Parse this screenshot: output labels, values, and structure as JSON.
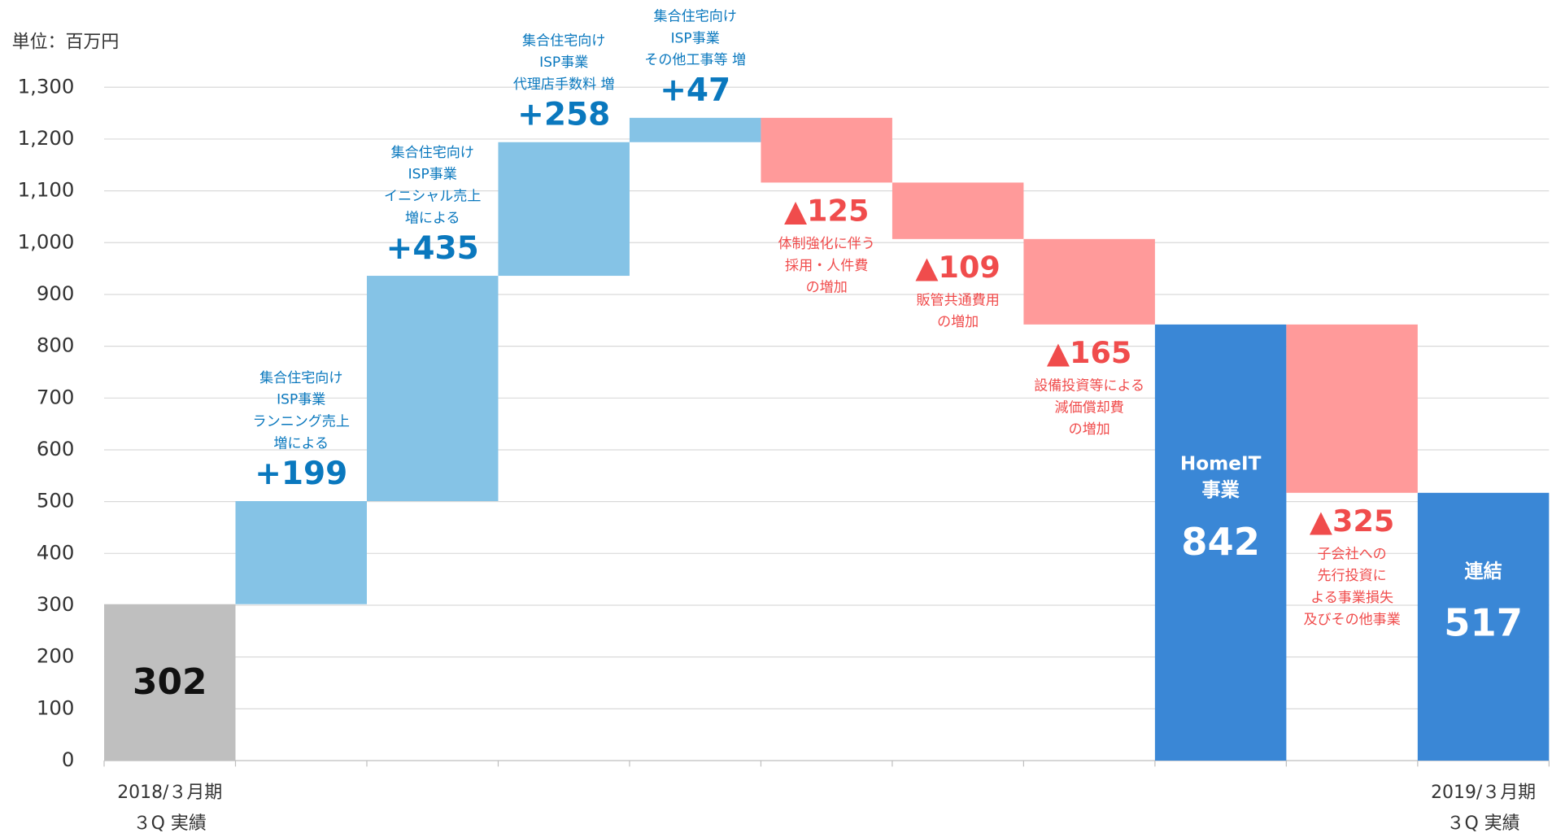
{
  "chart_data": {
    "type": "waterfall",
    "unit_label": "単位：百万円",
    "categories": [
      [
        "2018/３月期",
        "３Q 実績"
      ],
      null,
      null,
      null,
      null,
      null,
      null,
      null,
      null,
      null,
      [
        "2019/３月期",
        "３Q 実績"
      ]
    ],
    "measures": [
      "absolute",
      "relative",
      "relative",
      "relative",
      "relative",
      "relative",
      "relative",
      "relative",
      "total",
      "relative",
      "total"
    ],
    "values": [
      302,
      199,
      435,
      258,
      47,
      -125,
      -109,
      -165,
      842,
      -325,
      517
    ],
    "value_labels": [
      "302",
      "+199",
      "+435",
      "+258",
      "+47",
      "▲125",
      "▲109",
      "▲165",
      "842",
      "▲325",
      "517"
    ],
    "notes": [
      null,
      [
        "集合住宅向け",
        "ISP事業",
        "ランニング売上",
        "増による"
      ],
      [
        "集合住宅向け",
        "ISP事業",
        "イニシャル売上",
        "増による"
      ],
      [
        "集合住宅向け",
        "ISP事業",
        "代理店手数料 増"
      ],
      [
        "集合住宅向け",
        "ISP事業",
        "その他工事等 増"
      ],
      [
        "体制強化に伴う",
        "採用・人件費",
        "の増加"
      ],
      [
        "販管共通費用",
        "の増加"
      ],
      [
        "設備投資等による",
        "減価償却費",
        "の増加"
      ],
      null,
      [
        "子会社への",
        "先行投資に",
        "よる事業損失",
        "及びその他事業"
      ],
      null
    ],
    "bar_labels": [
      null,
      null,
      null,
      null,
      null,
      null,
      null,
      null,
      [
        "HomeIT",
        "事業"
      ],
      null,
      [
        "連結"
      ]
    ],
    "colors": {
      "absolute": "#bfbfbf",
      "increase": "#85c3e6",
      "decrease": "#ff9a9a",
      "total": "#3a87d6"
    },
    "label_colors": {
      "increase": "#0a78be",
      "decrease": "#f04c4c"
    },
    "ylim": [
      0,
      1300
    ],
    "yticks": [
      0,
      100,
      200,
      300,
      400,
      500,
      600,
      700,
      800,
      900,
      {
        "value": 1000,
        "label": "1,000"
      },
      {
        "value": 1100,
        "label": "1,100"
      },
      {
        "value": 1200,
        "label": "1,200"
      },
      {
        "value": 1300,
        "label": "1,300"
      }
    ],
    "grid": true
  }
}
